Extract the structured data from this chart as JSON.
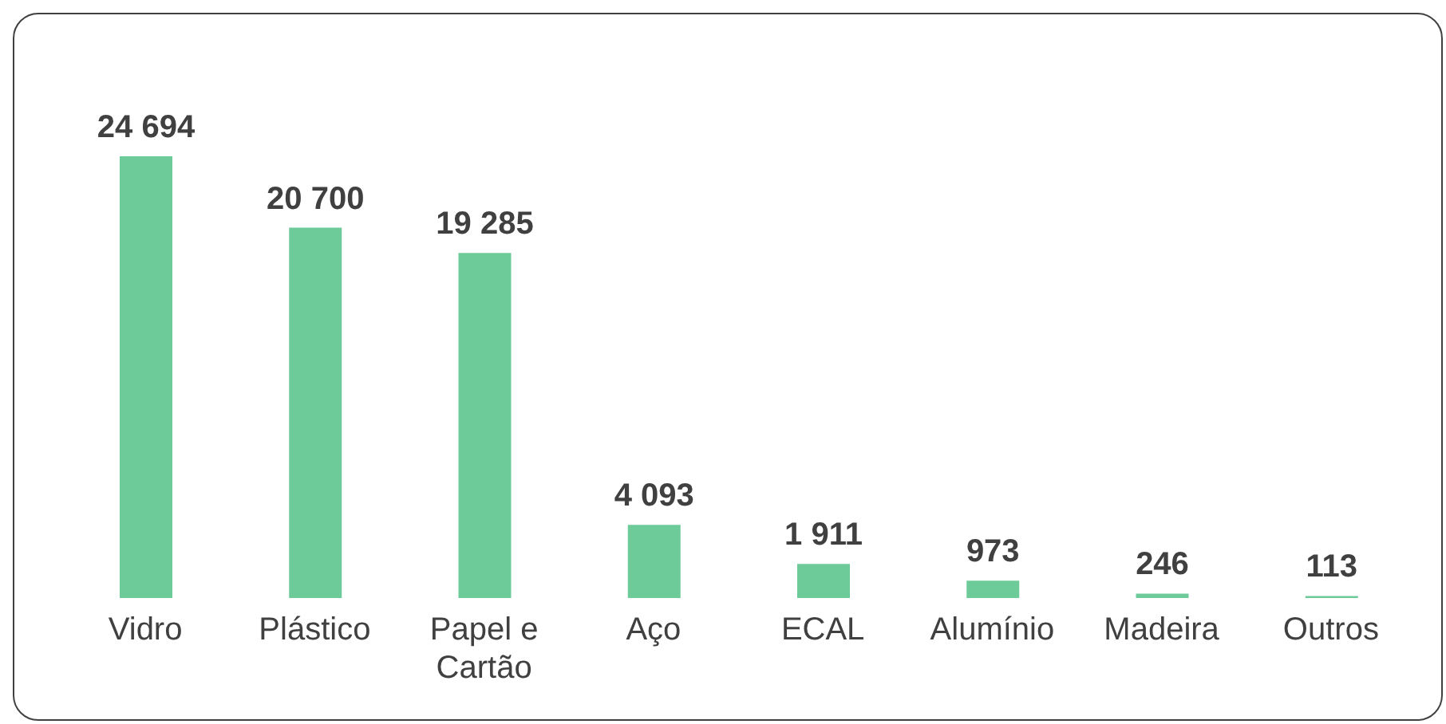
{
  "chart_data": {
    "type": "bar",
    "categories": [
      "Vidro",
      "Plástico",
      "Papel e Cartão",
      "Aço",
      "ECAL",
      "Alumínio",
      "Madeira",
      "Outros"
    ],
    "values": [
      24694,
      20700,
      19285,
      4093,
      1911,
      973,
      246,
      113
    ],
    "value_labels": [
      "24 694",
      "20 700",
      "19 285",
      "4 093",
      "1 911",
      "973",
      "246",
      "113"
    ],
    "color": "#6dcb9a"
  }
}
